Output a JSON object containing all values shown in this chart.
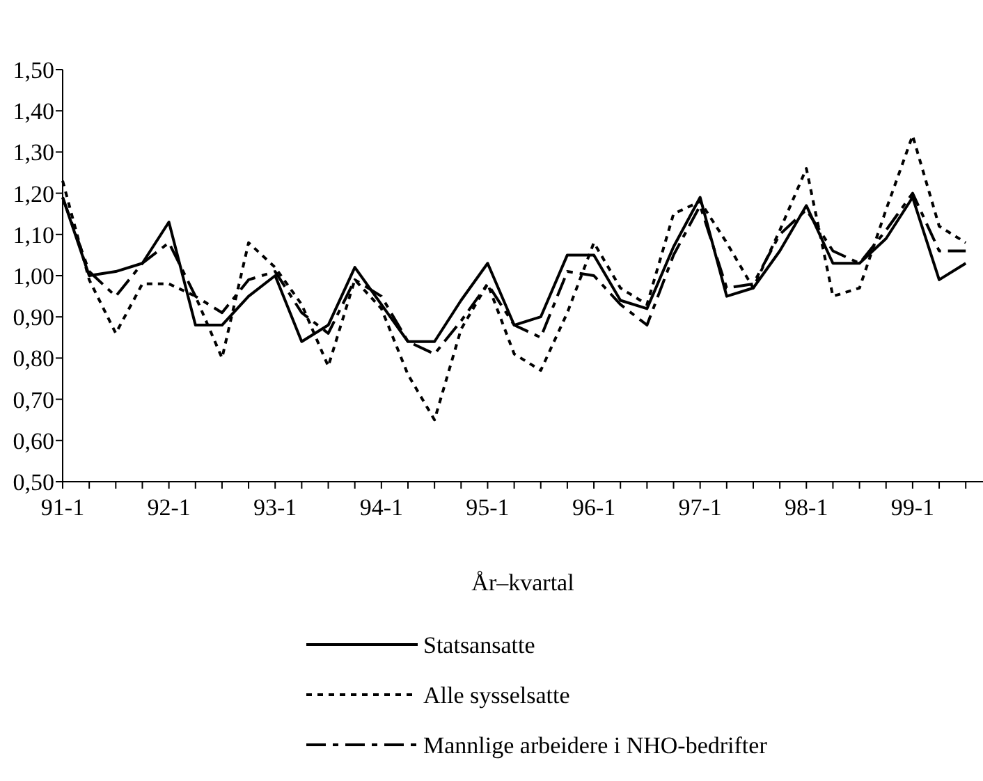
{
  "chart_data": {
    "type": "line",
    "xlabel": "År–kvartal",
    "categories": [
      "91-1",
      null,
      null,
      null,
      "92-1",
      null,
      null,
      null,
      "93-1",
      null,
      null,
      null,
      "94-1",
      null,
      null,
      null,
      "95-1",
      null,
      null,
      null,
      "96-1",
      null,
      null,
      null,
      "97-1",
      null,
      null,
      null,
      "98-1",
      null,
      null,
      null,
      "99-1",
      null,
      null
    ],
    "series": [
      {
        "name": "Statsansatte",
        "color": "#000000",
        "line_style": "solid",
        "values": [
          1.19,
          1.0,
          1.01,
          1.03,
          1.13,
          0.88,
          0.88,
          0.95,
          1.0,
          0.84,
          0.88,
          1.02,
          0.93,
          0.84,
          0.84,
          0.94,
          1.03,
          0.88,
          0.9,
          1.05,
          1.05,
          0.94,
          0.92,
          1.07,
          1.19,
          0.95,
          0.97,
          1.06,
          1.17,
          1.03,
          1.03,
          1.09,
          1.19,
          0.99,
          1.03
        ]
      },
      {
        "name": "Alle sysselsatte",
        "color": "#000000",
        "line_style": "dotted",
        "values": [
          1.23,
          0.99,
          0.86,
          0.98,
          0.98,
          0.95,
          0.8,
          1.08,
          1.02,
          0.93,
          0.78,
          0.99,
          0.92,
          0.76,
          0.65,
          0.87,
          0.98,
          0.81,
          0.77,
          0.91,
          1.08,
          0.97,
          0.93,
          1.15,
          1.18,
          1.08,
          0.97,
          1.11,
          1.26,
          0.95,
          0.97,
          1.16,
          1.34,
          1.12,
          1.08
        ]
      },
      {
        "name": "Mannlige arbeidere i NHO-bedrifter",
        "color": "#000000",
        "line_style": "dashed",
        "values": [
          1.19,
          1.01,
          0.95,
          1.03,
          1.08,
          0.95,
          0.91,
          0.99,
          1.01,
          0.91,
          0.86,
          0.99,
          0.95,
          0.84,
          0.81,
          0.89,
          0.98,
          0.88,
          0.85,
          1.01,
          1.0,
          0.93,
          0.88,
          1.05,
          1.17,
          0.97,
          0.98,
          1.1,
          1.16,
          1.06,
          1.03,
          1.11,
          1.2,
          1.06,
          1.06
        ]
      }
    ],
    "ylim": [
      0.5,
      1.5
    ],
    "yticks": [
      {
        "value": 0.5,
        "label": "0,50"
      },
      {
        "value": 0.6,
        "label": "0,60"
      },
      {
        "value": 0.7,
        "label": "0,70"
      },
      {
        "value": 0.8,
        "label": "0,80"
      },
      {
        "value": 0.9,
        "label": "0,90"
      },
      {
        "value": 1.0,
        "label": "1,00"
      },
      {
        "value": 1.1,
        "label": "1,10"
      },
      {
        "value": 1.2,
        "label": "1,20"
      },
      {
        "value": 1.3,
        "label": "1,30"
      },
      {
        "value": 1.4,
        "label": "1,40"
      },
      {
        "value": 1.5,
        "label": "1,50"
      }
    ],
    "grid": false,
    "legend": "bottom"
  }
}
